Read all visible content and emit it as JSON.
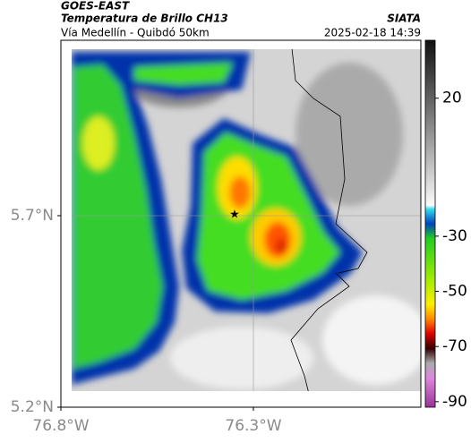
{
  "header": {
    "source": "GOES-EAST",
    "title": "Temperatura de Brillo CH13",
    "brand": "SIATA",
    "subtitle": "Vía Medellín - Quibdó 50km",
    "datetime": "2025-02-18 14:39"
  },
  "map": {
    "lon_lim": [
      -76.8,
      -75.865
    ],
    "lat_lim": [
      5.2,
      6.158
    ],
    "lon_ticks": [
      {
        "value": -76.8,
        "label": "76.8°W"
      },
      {
        "value": -76.3,
        "label": "76.3°W"
      }
    ],
    "lat_ticks": [
      {
        "value": 5.2,
        "label": "5.2°N"
      },
      {
        "value": 5.7,
        "label": "5.7°N"
      }
    ]
  },
  "colorbar": {
    "lim": [
      41,
      -92
    ],
    "ticks": [
      20,
      -30,
      -50,
      -70,
      -90
    ]
  }
}
